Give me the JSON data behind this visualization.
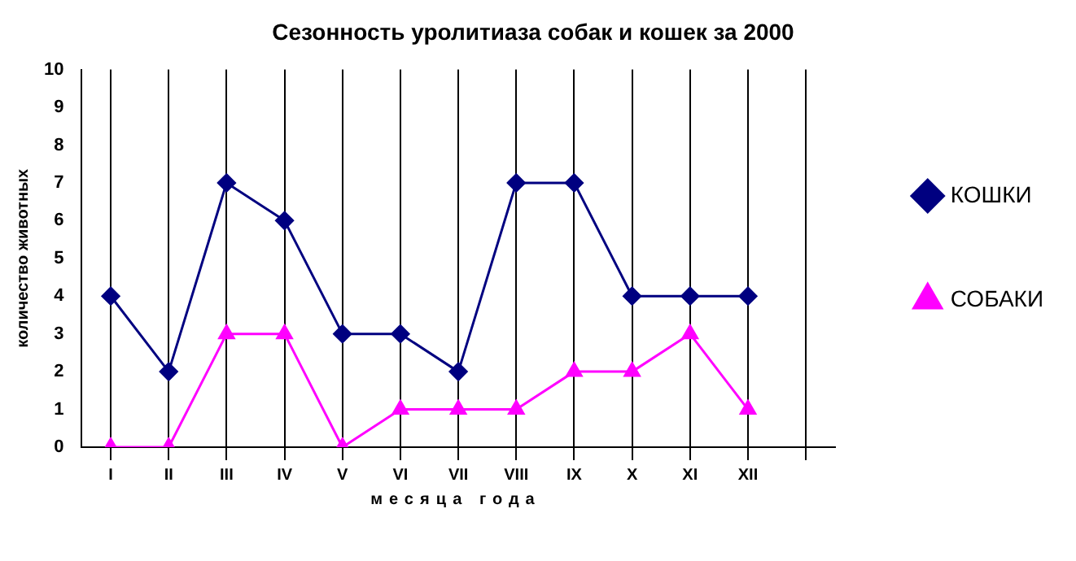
{
  "chart_data": {
    "type": "line",
    "title": "Сезонность уролитиаза собак и кошек за 2000",
    "xlabel": "месяца года",
    "ylabel": "количество животных",
    "categories": [
      "I",
      "II",
      "III",
      "IV",
      "V",
      "VI",
      "VII",
      "VIII",
      "IX",
      "X",
      "XI",
      "XII",
      null
    ],
    "series": [
      {
        "name": "КОШКИ",
        "color": "#000080",
        "marker": "diamond",
        "values": [
          4,
          2,
          7,
          6,
          3,
          3,
          2,
          7,
          7,
          4,
          4,
          4,
          null
        ]
      },
      {
        "name": "СОБАКИ",
        "color": "#ff00ff",
        "marker": "triangle",
        "values": [
          0,
          0,
          3,
          3,
          0,
          1,
          1,
          1,
          2,
          2,
          3,
          1,
          null
        ]
      }
    ],
    "ylim": [
      0,
      10
    ],
    "yticks": [
      0,
      1,
      2,
      3,
      4,
      5,
      6,
      7,
      8,
      9,
      10
    ],
    "grid": "x",
    "legend": "right",
    "line_style": "solid"
  }
}
